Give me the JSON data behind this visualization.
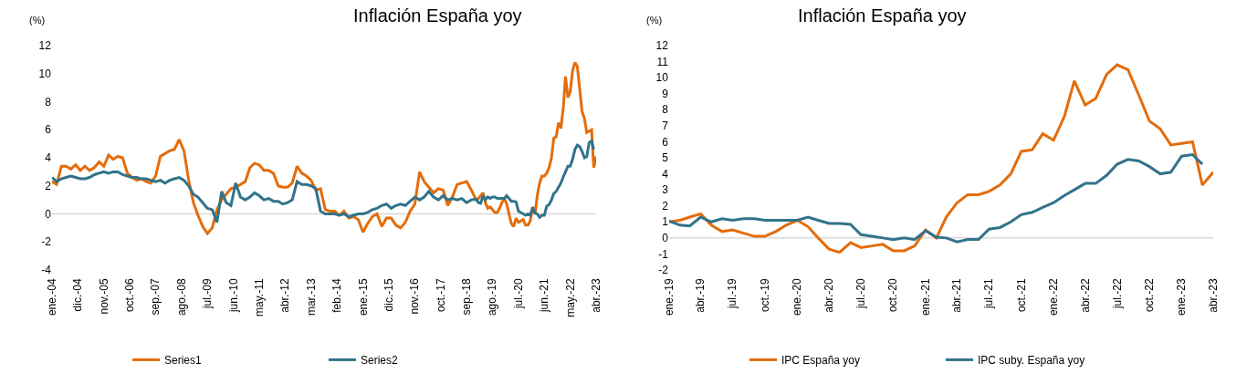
{
  "chart_data": [
    {
      "type": "line",
      "title": "Inflación España yoy",
      "ylabel": "(%)",
      "legend": "bottom",
      "grid": false,
      "x": [
        "2004-01",
        "2004-03",
        "2004-05",
        "2004-07",
        "2004-09",
        "2004-11",
        "2005-01",
        "2005-03",
        "2005-05",
        "2005-07",
        "2005-09",
        "2005-11",
        "2006-01",
        "2006-03",
        "2006-05",
        "2006-07",
        "2006-09",
        "2006-11",
        "2007-01",
        "2007-03",
        "2007-05",
        "2007-07",
        "2007-09",
        "2007-11",
        "2008-01",
        "2008-03",
        "2008-05",
        "2008-07",
        "2008-09",
        "2008-11",
        "2009-01",
        "2009-03",
        "2009-05",
        "2009-07",
        "2009-09",
        "2009-11",
        "2010-01",
        "2010-03",
        "2010-05",
        "2010-07",
        "2010-09",
        "2010-11",
        "2011-01",
        "2011-03",
        "2011-05",
        "2011-07",
        "2011-09",
        "2011-11",
        "2012-01",
        "2012-03",
        "2012-05",
        "2012-07",
        "2012-09",
        "2012-11",
        "2013-01",
        "2013-03",
        "2013-05",
        "2013-07",
        "2013-09",
        "2013-11",
        "2014-01",
        "2014-03",
        "2014-05",
        "2014-07",
        "2014-09",
        "2014-11",
        "2015-01",
        "2015-03",
        "2015-05",
        "2015-07",
        "2015-09",
        "2015-11",
        "2016-01",
        "2016-03",
        "2016-05",
        "2016-07",
        "2016-09",
        "2016-11",
        "2017-01",
        "2017-03",
        "2017-05",
        "2017-07",
        "2017-09",
        "2017-11",
        "2018-01",
        "2018-03",
        "2018-05",
        "2018-07",
        "2018-09",
        "2018-11",
        "2019-01",
        "2019-02",
        "2019-03",
        "2019-04",
        "2019-05",
        "2019-06",
        "2019-07",
        "2019-08",
        "2019-09",
        "2019-10",
        "2019-11",
        "2019-12",
        "2020-01",
        "2020-02",
        "2020-03",
        "2020-04",
        "2020-05",
        "2020-06",
        "2020-07",
        "2020-08",
        "2020-09",
        "2020-10",
        "2020-11",
        "2020-12",
        "2021-01",
        "2021-02",
        "2021-03",
        "2021-04",
        "2021-05",
        "2021-06",
        "2021-07",
        "2021-08",
        "2021-09",
        "2021-10",
        "2021-11",
        "2021-12",
        "2022-01",
        "2022-02",
        "2022-03",
        "2022-04",
        "2022-05",
        "2022-06",
        "2022-07",
        "2022-08",
        "2022-09",
        "2022-10",
        "2022-11",
        "2022-12",
        "2023-01",
        "2023-02",
        "2023-03",
        "2023-04"
      ],
      "xlim": [
        "2004-01",
        "2023-04"
      ],
      "xticks": [
        {
          "value": "2004-01",
          "label": "ene.-04"
        },
        {
          "value": "2004-12",
          "label": "dic.-04"
        },
        {
          "value": "2005-11",
          "label": "nov.-05"
        },
        {
          "value": "2006-10",
          "label": "oct.-06"
        },
        {
          "value": "2007-09",
          "label": "sep.-07"
        },
        {
          "value": "2008-08",
          "label": "ago.-08"
        },
        {
          "value": "2009-07",
          "label": "jul.-09"
        },
        {
          "value": "2010-06",
          "label": "jun.-10"
        },
        {
          "value": "2011-05",
          "label": "may.-11"
        },
        {
          "value": "2012-04",
          "label": "abr.-12"
        },
        {
          "value": "2013-03",
          "label": "mar.-13"
        },
        {
          "value": "2014-02",
          "label": "feb.-14"
        },
        {
          "value": "2015-01",
          "label": "ene.-15"
        },
        {
          "value": "2015-12",
          "label": "dic.-15"
        },
        {
          "value": "2016-11",
          "label": "nov.-16"
        },
        {
          "value": "2017-10",
          "label": "oct.-17"
        },
        {
          "value": "2018-09",
          "label": "sep.-18"
        },
        {
          "value": "2019-08",
          "label": "ago.-19"
        },
        {
          "value": "2020-07",
          "label": "jul.-20"
        },
        {
          "value": "2021-06",
          "label": "jun.-21"
        },
        {
          "value": "2022-05",
          "label": "may.-22"
        },
        {
          "value": "2023-04",
          "label": "abr.-23"
        }
      ],
      "ylim": [
        -4,
        12
      ],
      "yticks": [
        -4,
        -2,
        0,
        2,
        4,
        6,
        8,
        10,
        12
      ],
      "ref_lines": [
        {
          "axis": "y",
          "value": 0,
          "color": "#d9d9d9"
        }
      ],
      "series": [
        {
          "name": "Series1",
          "color": "#e46c0a",
          "values": [
            2.3,
            2.1,
            3.4,
            3.4,
            3.2,
            3.5,
            3.1,
            3.4,
            3.1,
            3.3,
            3.7,
            3.4,
            4.2,
            3.9,
            4.1,
            4.0,
            2.9,
            2.6,
            2.4,
            2.5,
            2.3,
            2.2,
            2.7,
            4.1,
            4.3,
            4.5,
            4.6,
            5.3,
            4.5,
            2.4,
            0.8,
            -0.1,
            -0.9,
            -1.4,
            -1.0,
            0.3,
            1.0,
            1.4,
            1.8,
            1.9,
            2.1,
            2.3,
            3.3,
            3.6,
            3.5,
            3.1,
            3.1,
            2.9,
            2.0,
            1.9,
            1.9,
            2.2,
            3.4,
            2.9,
            2.7,
            2.4,
            1.7,
            1.8,
            0.3,
            0.2,
            0.2,
            -0.1,
            0.2,
            -0.3,
            -0.2,
            -0.4,
            -1.3,
            -0.7,
            -0.2,
            0.0,
            -0.9,
            -0.3,
            -0.3,
            -0.8,
            -1.0,
            -0.6,
            0.2,
            0.7,
            3.0,
            2.3,
            1.9,
            1.5,
            1.8,
            1.7,
            0.6,
            1.2,
            2.1,
            2.2,
            2.3,
            1.7,
            1.0,
            1.1,
            1.3,
            1.5,
            0.8,
            0.4,
            0.5,
            0.3,
            0.1,
            0.1,
            0.4,
            0.8,
            1.1,
            0.7,
            0.0,
            -0.7,
            -0.9,
            -0.3,
            -0.6,
            -0.5,
            -0.4,
            -0.8,
            -0.8,
            -0.5,
            0.5,
            0.0,
            1.3,
            2.2,
            2.7,
            2.7,
            2.9,
            3.3,
            4.0,
            5.4,
            5.5,
            6.5,
            6.1,
            7.6,
            9.8,
            8.3,
            8.7,
            10.2,
            10.8,
            10.5,
            8.9,
            7.3,
            6.8,
            5.8,
            5.9,
            6.0,
            3.3,
            4.1
          ]
        },
        {
          "name": "Series2",
          "color": "#31738a",
          "values": [
            2.6,
            2.3,
            2.5,
            2.6,
            2.7,
            2.6,
            2.5,
            2.5,
            2.6,
            2.8,
            2.9,
            3.0,
            2.9,
            3.0,
            3.0,
            2.8,
            2.7,
            2.6,
            2.6,
            2.5,
            2.5,
            2.4,
            2.3,
            2.4,
            2.2,
            2.4,
            2.5,
            2.6,
            2.4,
            2.0,
            1.4,
            1.2,
            0.8,
            0.4,
            0.3,
            -0.6,
            1.6,
            0.8,
            0.6,
            2.2,
            1.2,
            1.0,
            1.2,
            1.5,
            1.3,
            1.0,
            1.1,
            0.9,
            0.9,
            0.7,
            0.8,
            1.0,
            2.3,
            2.1,
            2.1,
            2.0,
            1.8,
            0.2,
            0.0,
            0.0,
            0.0,
            -0.1,
            0.0,
            -0.2,
            -0.1,
            0.0,
            0.0,
            0.1,
            0.3,
            0.4,
            0.6,
            0.7,
            0.4,
            0.6,
            0.7,
            0.6,
            0.9,
            1.2,
            1.0,
            1.2,
            1.6,
            1.2,
            1.0,
            1.3,
            1.0,
            1.1,
            1.0,
            1.1,
            0.8,
            1.0,
            1.05,
            0.8,
            0.75,
            1.3,
            1.0,
            1.2,
            1.1,
            1.2,
            1.2,
            1.1,
            1.1,
            1.1,
            1.1,
            1.3,
            1.1,
            0.9,
            0.9,
            0.85,
            0.2,
            0.1,
            0.0,
            -0.1,
            0.0,
            -0.1,
            0.45,
            0.05,
            0.0,
            -0.25,
            -0.1,
            -0.1,
            0.55,
            0.65,
            1.0,
            1.45,
            1.6,
            1.9,
            2.2,
            2.65,
            3.0,
            3.4,
            3.4,
            3.9,
            4.6,
            4.9,
            4.8,
            4.45,
            4.0,
            4.1,
            5.1,
            5.2,
            4.6,
            null
          ]
        }
      ]
    },
    {
      "type": "line",
      "title": "Inflación España yoy",
      "ylabel": "(%)",
      "legend": "bottom",
      "grid": false,
      "x": [
        "2019-01",
        "2019-02",
        "2019-03",
        "2019-04",
        "2019-05",
        "2019-06",
        "2019-07",
        "2019-08",
        "2019-09",
        "2019-10",
        "2019-11",
        "2019-12",
        "2020-01",
        "2020-02",
        "2020-03",
        "2020-04",
        "2020-05",
        "2020-06",
        "2020-07",
        "2020-08",
        "2020-09",
        "2020-10",
        "2020-11",
        "2020-12",
        "2021-01",
        "2021-02",
        "2021-03",
        "2021-04",
        "2021-05",
        "2021-06",
        "2021-07",
        "2021-08",
        "2021-09",
        "2021-10",
        "2021-11",
        "2021-12",
        "2022-01",
        "2022-02",
        "2022-03",
        "2022-04",
        "2022-05",
        "2022-06",
        "2022-07",
        "2022-08",
        "2022-09",
        "2022-10",
        "2022-11",
        "2022-12",
        "2023-01",
        "2023-02",
        "2023-03",
        "2023-04"
      ],
      "xlim": [
        "2019-01",
        "2023-04"
      ],
      "xticks": [
        {
          "value": "2019-01",
          "label": "ene.-19"
        },
        {
          "value": "2019-04",
          "label": "abr.-19"
        },
        {
          "value": "2019-07",
          "label": "jul.-19"
        },
        {
          "value": "2019-10",
          "label": "oct.-19"
        },
        {
          "value": "2020-01",
          "label": "ene.-20"
        },
        {
          "value": "2020-04",
          "label": "abr.-20"
        },
        {
          "value": "2020-07",
          "label": "jul.-20"
        },
        {
          "value": "2020-10",
          "label": "oct.-20"
        },
        {
          "value": "2021-01",
          "label": "ene.-21"
        },
        {
          "value": "2021-04",
          "label": "abr.-21"
        },
        {
          "value": "2021-07",
          "label": "jul.-21"
        },
        {
          "value": "2021-10",
          "label": "oct.-21"
        },
        {
          "value": "2022-01",
          "label": "ene.-22"
        },
        {
          "value": "2022-04",
          "label": "abr.-22"
        },
        {
          "value": "2022-07",
          "label": "jul.-22"
        },
        {
          "value": "2022-10",
          "label": "oct.-22"
        },
        {
          "value": "2023-01",
          "label": "ene.-23"
        },
        {
          "value": "2023-04",
          "label": "abr.-23"
        }
      ],
      "ylim": [
        -2,
        12
      ],
      "yticks": [
        -2,
        -1,
        0,
        1,
        2,
        3,
        4,
        5,
        6,
        7,
        8,
        9,
        10,
        11,
        12
      ],
      "ref_lines": [
        {
          "axis": "y",
          "value": 0,
          "color": "#d9d9d9"
        }
      ],
      "series": [
        {
          "name": "IPC España yoy",
          "color": "#e46c0a",
          "values": [
            1.0,
            1.1,
            1.3,
            1.5,
            0.8,
            0.4,
            0.5,
            0.3,
            0.1,
            0.1,
            0.4,
            0.8,
            1.1,
            0.7,
            0.0,
            -0.7,
            -0.9,
            -0.3,
            -0.6,
            -0.5,
            -0.4,
            -0.8,
            -0.8,
            -0.5,
            0.5,
            0.0,
            1.3,
            2.2,
            2.7,
            2.7,
            2.9,
            3.3,
            4.0,
            5.4,
            5.5,
            6.5,
            6.1,
            7.6,
            9.8,
            8.3,
            8.7,
            10.2,
            10.8,
            10.5,
            8.9,
            7.3,
            6.8,
            5.8,
            5.9,
            6.0,
            3.3,
            4.1
          ]
        },
        {
          "name": "IPC suby. España yoy",
          "color": "#31738a",
          "values": [
            1.05,
            0.8,
            0.75,
            1.3,
            1.0,
            1.2,
            1.1,
            1.2,
            1.2,
            1.1,
            1.1,
            1.1,
            1.1,
            1.3,
            1.1,
            0.9,
            0.9,
            0.85,
            0.2,
            0.1,
            0.0,
            -0.1,
            0.0,
            -0.1,
            0.45,
            0.05,
            0.0,
            -0.25,
            -0.1,
            -0.1,
            0.55,
            0.65,
            1.0,
            1.45,
            1.6,
            1.9,
            2.2,
            2.65,
            3.0,
            3.4,
            3.4,
            3.9,
            4.6,
            4.9,
            4.8,
            4.45,
            4.0,
            4.1,
            5.1,
            5.2,
            4.6,
            null
          ]
        }
      ]
    }
  ]
}
